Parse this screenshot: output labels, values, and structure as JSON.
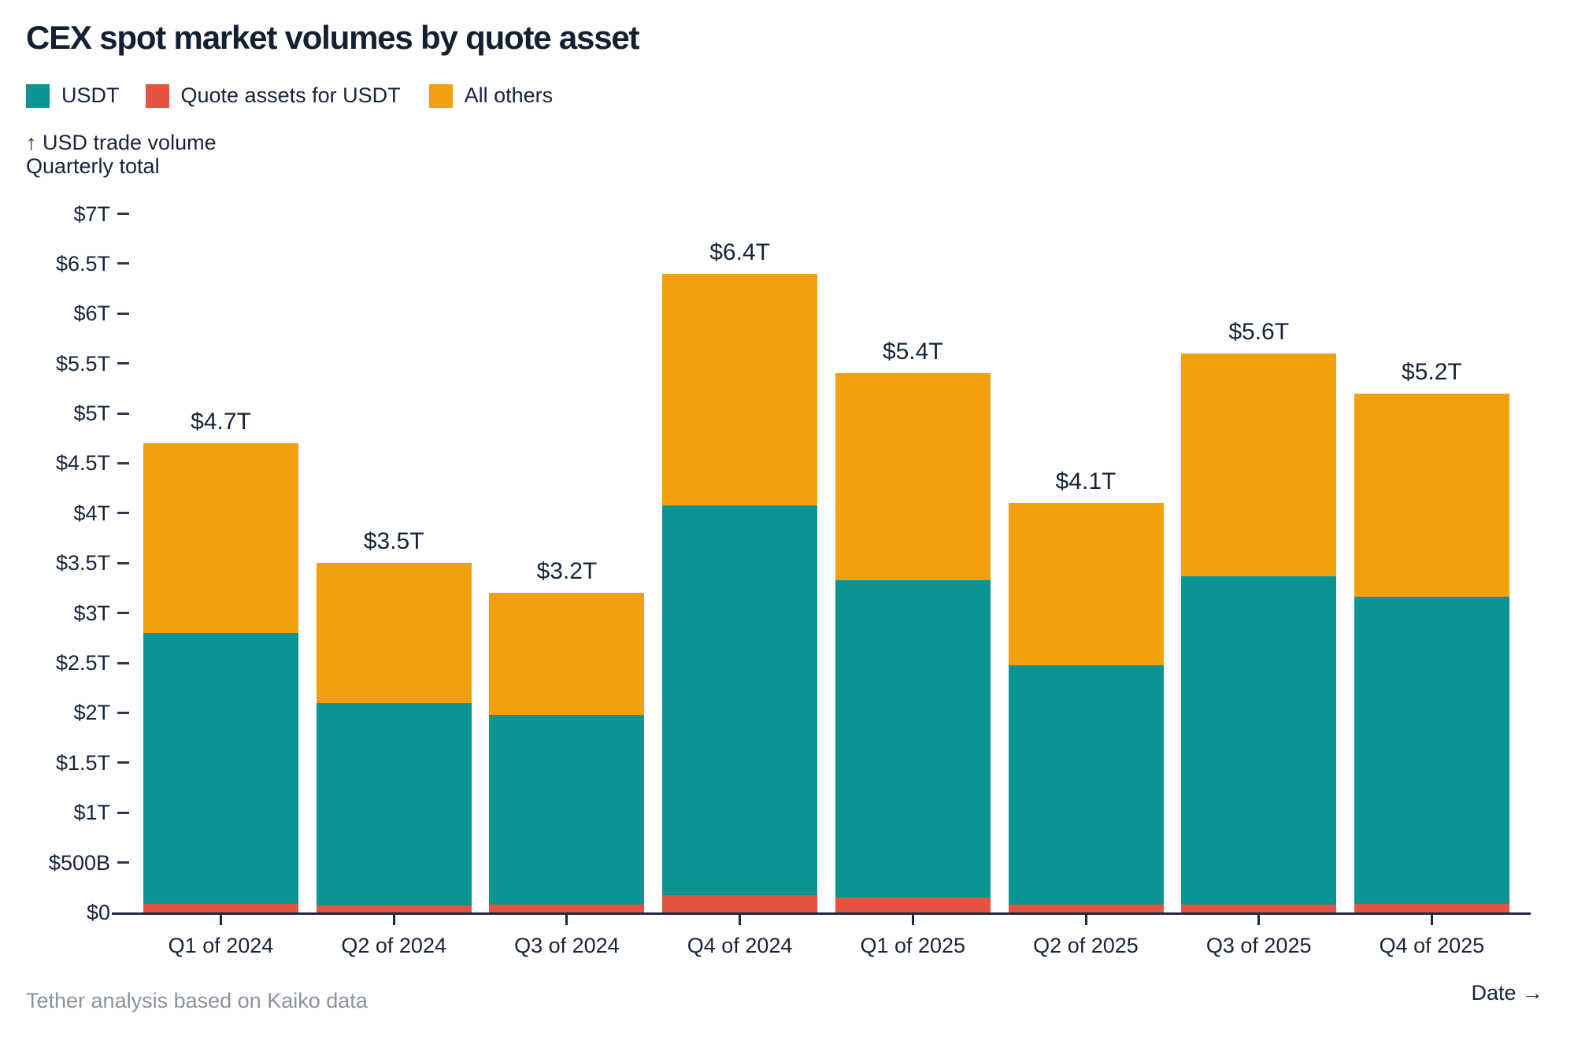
{
  "title": "CEX spot market volumes by quote asset",
  "legend": [
    {
      "label": "USDT",
      "color": "#0a9594"
    },
    {
      "label": "Quote assets for USDT",
      "color": "#e5523d"
    },
    {
      "label": "All others",
      "color": "#f3a00f"
    }
  ],
  "y_axis_title_line1": "↑ USD trade volume",
  "y_axis_title_line2": "Quarterly total",
  "x_axis_label": "Date →",
  "footer": "Tether analysis based on Kaiko data",
  "colors": {
    "teal": "#0a9594",
    "red": "#e5523d",
    "orange": "#f3a00f",
    "navy_text": "#16243a",
    "axis": "#1b2940",
    "footer_gray": "#8b929c",
    "background": "#ffffff"
  },
  "chart_data": {
    "type": "bar",
    "stacked": true,
    "title": "CEX spot market volumes by quote asset",
    "ylabel": "USD trade volume, Quarterly total",
    "xlabel": "Date",
    "unit": "trillions USD",
    "ylim": [
      0,
      7
    ],
    "grid": false,
    "legend_position": "top-left",
    "categories": [
      "Q1 of 2024",
      "Q2 of 2024",
      "Q3 of 2024",
      "Q4 of 2024",
      "Q1 of 2025",
      "Q2 of 2025",
      "Q3 of 2025",
      "Q4 of 2025"
    ],
    "series": [
      {
        "name": "Quote assets for USDT",
        "color": "#e5523d",
        "values": [
          0.09,
          0.07,
          0.08,
          0.17,
          0.15,
          0.08,
          0.08,
          0.09
        ]
      },
      {
        "name": "USDT",
        "color": "#0a9594",
        "values": [
          2.71,
          2.03,
          1.9,
          3.91,
          3.18,
          2.4,
          3.29,
          3.07
        ]
      },
      {
        "name": "All others",
        "color": "#f3a00f",
        "values": [
          1.9,
          1.4,
          1.22,
          2.32,
          2.07,
          1.62,
          2.23,
          2.04
        ]
      }
    ],
    "totals": [
      4.7,
      3.5,
      3.2,
      6.4,
      5.4,
      4.1,
      5.6,
      5.2
    ],
    "total_labels": [
      "$4.7T",
      "$3.5T",
      "$3.2T",
      "$6.4T",
      "$5.4T",
      "$4.1T",
      "$5.6T",
      "$5.2T"
    ],
    "y_ticks": [
      {
        "label": "$7T",
        "value": 7.0
      },
      {
        "label": "$6.5T",
        "value": 6.5
      },
      {
        "label": "$6T",
        "value": 6.0
      },
      {
        "label": "$5.5T",
        "value": 5.5
      },
      {
        "label": "$5T",
        "value": 5.0
      },
      {
        "label": "$4.5T",
        "value": 4.5
      },
      {
        "label": "$4T",
        "value": 4.0
      },
      {
        "label": "$3.5T",
        "value": 3.5
      },
      {
        "label": "$3T",
        "value": 3.0
      },
      {
        "label": "$2.5T",
        "value": 2.5
      },
      {
        "label": "$2T",
        "value": 2.0
      },
      {
        "label": "$1.5T",
        "value": 1.5
      },
      {
        "label": "$1T",
        "value": 1.0
      },
      {
        "label": "$500B",
        "value": 0.5
      },
      {
        "label": "$0",
        "value": 0.0
      }
    ]
  }
}
